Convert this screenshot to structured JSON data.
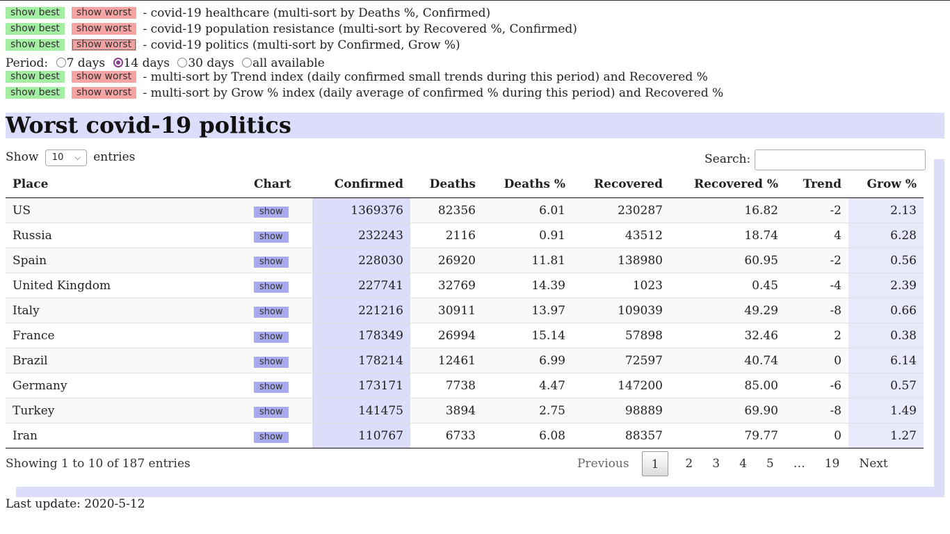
{
  "controls": {
    "rows": [
      {
        "best": "show best",
        "worst": "show worst",
        "desc": "- covid-19 healthcare (multi-sort by Deaths %, Confirmed)"
      },
      {
        "best": "show best",
        "worst": "show worst",
        "desc": "- covid-19 population resistance (multi-sort by Recovered %, Confirmed)"
      },
      {
        "best": "show best",
        "worst": "show worst",
        "desc": "- covid-19 politics (multi-sort by Confirmed, Grow %)"
      }
    ],
    "period": {
      "label": "Period:",
      "options": [
        "7 days",
        "14 days",
        "30 days",
        "all available"
      ],
      "selected": "14 days"
    },
    "index_rows": [
      {
        "best": "show best",
        "worst": "show worst",
        "desc": "- multi-sort by Trend index (daily confirmed small trends during this period) and Recovered %"
      },
      {
        "best": "show best",
        "worst": "show worst",
        "desc": "- multi-sort by Grow % index (daily average of confirmed % during this period) and Recovered %"
      }
    ]
  },
  "colors": {
    "best": "#a3eea3",
    "worst": "#f5a3a3",
    "band": "#dcdcfb",
    "show": "#a9a9ee"
  },
  "main": {
    "title": "Worst covid-19 politics",
    "length": {
      "prefix": "Show",
      "value": "10",
      "suffix": "entries"
    },
    "search": {
      "label": "Search:",
      "value": ""
    },
    "table": {
      "headers": [
        "Place",
        "Chart",
        "Confirmed",
        "Deaths",
        "Deaths %",
        "Recovered",
        "Recovered %",
        "Trend",
        "Grow %"
      ],
      "show_label": "show",
      "rows": [
        [
          "US",
          "1369376",
          "82356",
          "6.01",
          "230287",
          "16.82",
          "-2",
          "2.13"
        ],
        [
          "Russia",
          "232243",
          "2116",
          "0.91",
          "43512",
          "18.74",
          "4",
          "6.28"
        ],
        [
          "Spain",
          "228030",
          "26920",
          "11.81",
          "138980",
          "60.95",
          "-2",
          "0.56"
        ],
        [
          "United Kingdom",
          "227741",
          "32769",
          "14.39",
          "1023",
          "0.45",
          "-4",
          "2.39"
        ],
        [
          "Italy",
          "221216",
          "30911",
          "13.97",
          "109039",
          "49.29",
          "-8",
          "0.66"
        ],
        [
          "France",
          "178349",
          "26994",
          "15.14",
          "57898",
          "32.46",
          "2",
          "0.38"
        ],
        [
          "Brazil",
          "178214",
          "12461",
          "6.99",
          "72597",
          "40.74",
          "0",
          "6.14"
        ],
        [
          "Germany",
          "173171",
          "7738",
          "4.47",
          "147200",
          "85.00",
          "-6",
          "0.57"
        ],
        [
          "Turkey",
          "141475",
          "3894",
          "2.75",
          "98889",
          "69.90",
          "-8",
          "1.49"
        ],
        [
          "Iran",
          "110767",
          "6733",
          "6.08",
          "88357",
          "79.77",
          "0",
          "1.27"
        ]
      ]
    },
    "info": "Showing 1 to 10 of 187 entries",
    "pagination": {
      "previous": "Previous",
      "pages": [
        "1",
        "2",
        "3",
        "4",
        "5",
        "…",
        "19"
      ],
      "current": "1",
      "next": "Next"
    }
  },
  "footer": {
    "last_update": "Last update: 2020-5-12"
  }
}
